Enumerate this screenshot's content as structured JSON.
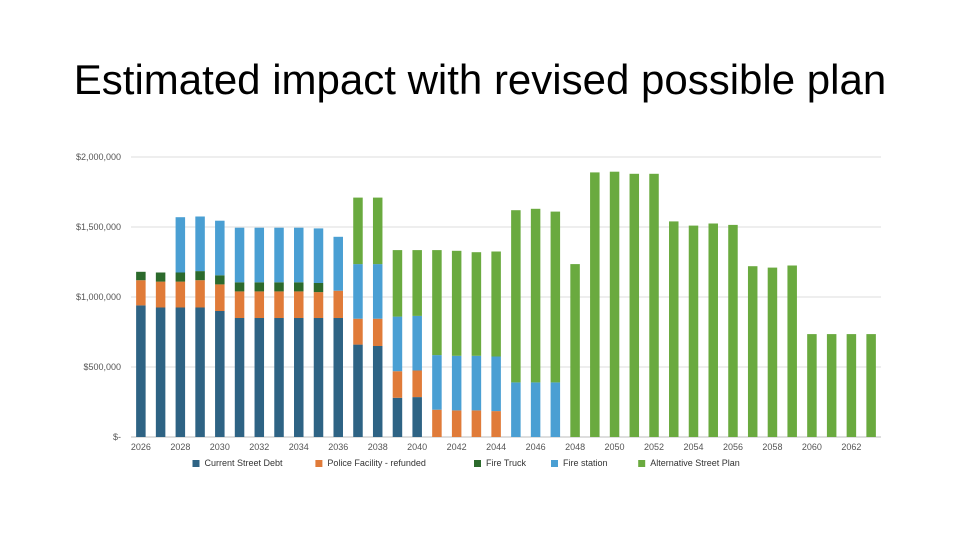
{
  "slide": {
    "title": "Estimated impact with revised possible plan"
  },
  "chart_data": {
    "type": "bar",
    "stacked": true,
    "title": "Estimated impact with revised possible plan",
    "xlabel": "",
    "ylabel": "",
    "ylim": [
      0,
      2000000
    ],
    "y_ticks": [
      0,
      500000,
      1000000,
      1500000,
      2000000
    ],
    "y_tick_labels": [
      "$-",
      "$500,000",
      "$1,000,000",
      "$1,500,000",
      "$2,000,000"
    ],
    "categories": [
      "2026",
      "2027",
      "2028",
      "2029",
      "2030",
      "2031",
      "2032",
      "2033",
      "2034",
      "2035",
      "2036",
      "2037",
      "2038",
      "2039",
      "2040",
      "2041",
      "2042",
      "2043",
      "2044",
      "2045",
      "2046",
      "2047",
      "2048",
      "2049",
      "2050",
      "2051",
      "2052",
      "2053",
      "2054",
      "2055",
      "2056",
      "2057",
      "2058",
      "2059",
      "2060",
      "2061",
      "2062",
      "2063"
    ],
    "x_tick_labels": [
      "2026",
      "",
      "2028",
      "",
      "2030",
      "",
      "2032",
      "",
      "2034",
      "",
      "2036",
      "",
      "2038",
      "",
      "2040",
      "",
      "2042",
      "",
      "2044",
      "",
      "2046",
      "",
      "2048",
      "",
      "2050",
      "",
      "2052",
      "",
      "2054",
      "",
      "2056",
      "",
      "2058",
      "",
      "2060",
      "",
      "2062",
      ""
    ],
    "grid": true,
    "legend_position": "bottom",
    "series": [
      {
        "name": "Current Street Debt",
        "color": "#2e6384",
        "values": [
          940000,
          925000,
          925000,
          925000,
          900000,
          850000,
          850000,
          850000,
          850000,
          850000,
          850000,
          660000,
          650000,
          280000,
          285000,
          0,
          0,
          0,
          0,
          0,
          0,
          0,
          0,
          0,
          0,
          0,
          0,
          0,
          0,
          0,
          0,
          0,
          0,
          0,
          0,
          0,
          0,
          0
        ]
      },
      {
        "name": "Police Facility - refunded",
        "color": "#e07b39",
        "values": [
          180000,
          185000,
          185000,
          195000,
          190000,
          190000,
          190000,
          190000,
          190000,
          185000,
          195000,
          185000,
          195000,
          190000,
          190000,
          195000,
          190000,
          190000,
          185000,
          0,
          0,
          0,
          0,
          0,
          0,
          0,
          0,
          0,
          0,
          0,
          0,
          0,
          0,
          0,
          0,
          0,
          0,
          0
        ]
      },
      {
        "name": "Fire Truck",
        "color": "#2c6a2c",
        "values": [
          60000,
          65000,
          65000,
          65000,
          65000,
          65000,
          65000,
          65000,
          65000,
          65000,
          0,
          0,
          0,
          0,
          0,
          0,
          0,
          0,
          0,
          0,
          0,
          0,
          0,
          0,
          0,
          0,
          0,
          0,
          0,
          0,
          0,
          0,
          0,
          0,
          0,
          0,
          0,
          0
        ]
      },
      {
        "name": "Fire station",
        "color": "#4a9fd3",
        "values": [
          0,
          0,
          395000,
          390000,
          390000,
          390000,
          390000,
          390000,
          390000,
          390000,
          385000,
          390000,
          390000,
          390000,
          390000,
          390000,
          390000,
          390000,
          390000,
          390000,
          390000,
          390000,
          0,
          0,
          0,
          0,
          0,
          0,
          0,
          0,
          0,
          0,
          0,
          0,
          0,
          0,
          0,
          0
        ]
      },
      {
        "name": "Alternative Street Plan",
        "color": "#6aaa3f",
        "values": [
          0,
          0,
          0,
          0,
          0,
          0,
          0,
          0,
          0,
          0,
          0,
          475000,
          475000,
          475000,
          470000,
          750000,
          750000,
          740000,
          750000,
          1230000,
          1240000,
          1220000,
          1235000,
          1890000,
          1895000,
          1880000,
          1880000,
          1540000,
          1510000,
          1525000,
          1515000,
          1220000,
          1210000,
          1225000,
          735000,
          735000,
          735000,
          735000
        ]
      }
    ]
  }
}
